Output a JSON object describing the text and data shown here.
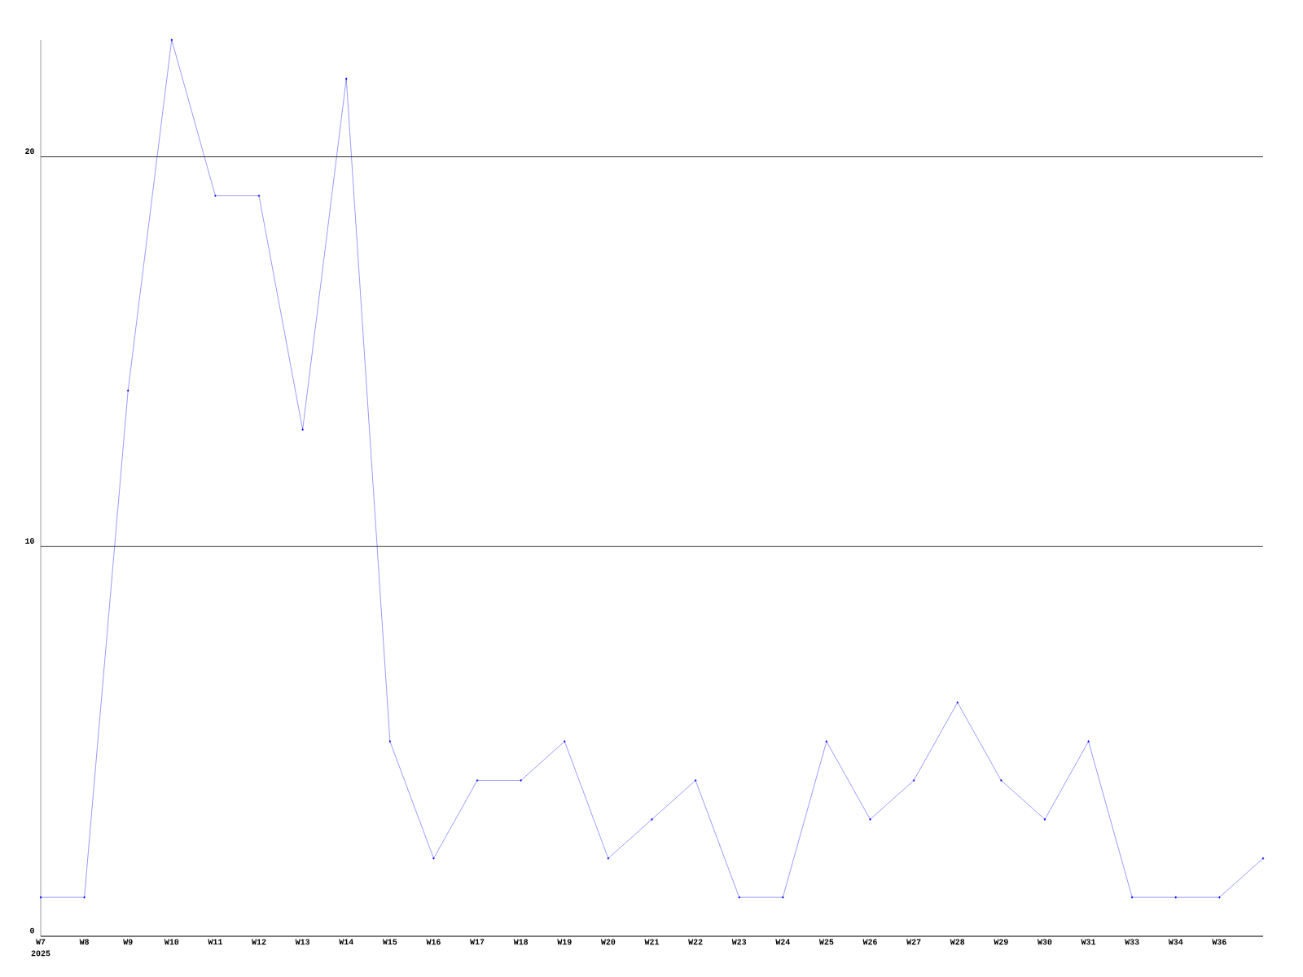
{
  "chart_data": {
    "type": "line",
    "categories": [
      "W7",
      "W8",
      "W9",
      "W10",
      "W11",
      "W12",
      "W13",
      "W14",
      "W15",
      "W16",
      "W17",
      "W18",
      "W19",
      "W20",
      "W21",
      "W22",
      "W23",
      "W24",
      "W25",
      "W26",
      "W27",
      "W28",
      "W29",
      "W30",
      "W31",
      "W33",
      "W34",
      "W36",
      null
    ],
    "series": [
      {
        "color": "#0000ff",
        "values": [
          1,
          1,
          14,
          23,
          19,
          19,
          13,
          22,
          5,
          2,
          4,
          4,
          5,
          2,
          3,
          4,
          1,
          1,
          5,
          3,
          4,
          6,
          4,
          3,
          5,
          1,
          1,
          1,
          2
        ]
      }
    ],
    "ylim": [
      0,
      23
    ],
    "yticks": [
      0,
      10,
      20
    ],
    "grid": "y",
    "marker": "diamond",
    "line_style": "solid",
    "annotations": [
      "2025"
    ]
  }
}
